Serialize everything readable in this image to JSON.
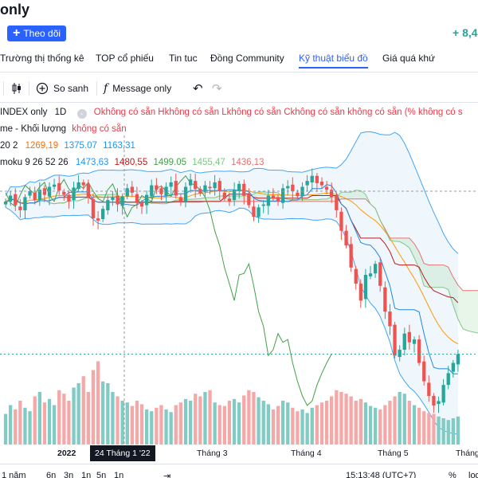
{
  "header": {
    "title": "only",
    "follow_label": "Theo dõi",
    "change": "+ 8,4"
  },
  "tabs": [
    {
      "label": "Trường thị thống kê"
    },
    {
      "label": "TOP cổ phiếu"
    },
    {
      "label": "Tin tuc"
    },
    {
      "label": "Đồng Community"
    },
    {
      "label": "Kỹ thuật biểu đồ",
      "active": true
    },
    {
      "label": "Giá quá khứ"
    }
  ],
  "toolbar": {
    "compare_label": "So sanh",
    "message_label": "Message only"
  },
  "legend": {
    "symbol": "INDEX only",
    "interval": "1D",
    "ohlc": "Okhông có sẵn Hkhông có sẵn Lkhông có sẵn Ckhông có sẵn không có sẵn (% không có s",
    "volume_label": "me - Khối lượng",
    "volume_value": "không có sẵn",
    "bb_params": "20 2",
    "bb_basis": "1269,19",
    "bb_upper": "1375.07",
    "bb_lower": "1163,31",
    "ichimoku_params": "moku 9 26 52 26",
    "ich_conv": "1473,63",
    "ich_base": "1480,55",
    "ich_lag": "1499.05",
    "ich_leadA": "1455,47",
    "ich_leadB": "1436,13"
  },
  "time_axis": {
    "labels": [
      "2022",
      "Tháng 3",
      "Tháng 4",
      "Tháng 5",
      "Tháng"
    ],
    "crosshair": "24 Tháng 1 '22"
  },
  "bottom_bar": {
    "ranges": [
      "1 năm",
      "6n",
      "3n",
      "1n",
      "5n",
      "1n"
    ],
    "time": "15:13:48 (UTC+7)",
    "percent": "%",
    "log": "log"
  },
  "colors": {
    "accent": "#2962ff",
    "up": "#26a69a",
    "down": "#ef5350",
    "bb_band": "#1e88e5",
    "basis": "#ff9800",
    "lagging": "#43a047",
    "kijun": "#b71c1c"
  },
  "chart_data": {
    "type": "candlestick",
    "price_series_close": [
      1470,
      1478,
      1465,
      1458,
      1476,
      1484,
      1472,
      1486,
      1479,
      1490,
      1493,
      1485,
      1479,
      1470,
      1489,
      1496,
      1492,
      1475,
      1447,
      1444,
      1460,
      1472,
      1476,
      1466,
      1477,
      1488,
      1482,
      1468,
      1463,
      1479,
      1492,
      1486,
      1480,
      1490,
      1496,
      1478,
      1470,
      1490,
      1500,
      1487,
      1481,
      1492,
      1488,
      1496,
      1484,
      1474,
      1470,
      1486,
      1494,
      1478,
      1465,
      1449,
      1462,
      1466,
      1478,
      1474,
      1470,
      1488,
      1491,
      1484,
      1477,
      1490,
      1498,
      1505,
      1495,
      1492,
      1486,
      1476,
      1458,
      1430,
      1410,
      1380,
      1358,
      1335,
      1370,
      1372,
      1385,
      1355,
      1320,
      1300,
      1260,
      1268,
      1290,
      1278,
      1282,
      1250,
      1225,
      1205,
      1192,
      1198,
      1220,
      1236,
      1250,
      1262
    ],
    "volume_relative": [
      0.35,
      0.45,
      0.4,
      0.5,
      0.42,
      0.38,
      0.55,
      0.6,
      0.48,
      0.52,
      0.45,
      0.62,
      0.58,
      0.5,
      0.65,
      0.7,
      0.78,
      0.6,
      0.85,
      0.95,
      0.72,
      0.7,
      0.6,
      0.55,
      0.5,
      0.48,
      0.44,
      0.5,
      0.46,
      0.4,
      0.38,
      0.42,
      0.45,
      0.4,
      0.37,
      0.45,
      0.48,
      0.52,
      0.5,
      0.58,
      0.55,
      0.6,
      0.62,
      0.48,
      0.45,
      0.44,
      0.5,
      0.52,
      0.48,
      0.56,
      0.62,
      0.6,
      0.54,
      0.5,
      0.46,
      0.4,
      0.44,
      0.5,
      0.48,
      0.42,
      0.38,
      0.4,
      0.36,
      0.42,
      0.45,
      0.48,
      0.5,
      0.55,
      0.62,
      0.6,
      0.58,
      0.55,
      0.5,
      0.52,
      0.48,
      0.44,
      0.42,
      0.4,
      0.45,
      0.5,
      0.55,
      0.6,
      0.58,
      0.5,
      0.45,
      0.42,
      0.38,
      0.36,
      0.35,
      0.32,
      0.3,
      0.28,
      0.3,
      0.32
    ],
    "xlabels": [
      "2022",
      "Tháng 3",
      "Tháng 4",
      "Tháng 5",
      "Tháng"
    ],
    "ylim": [
      1180,
      1560
    ]
  }
}
